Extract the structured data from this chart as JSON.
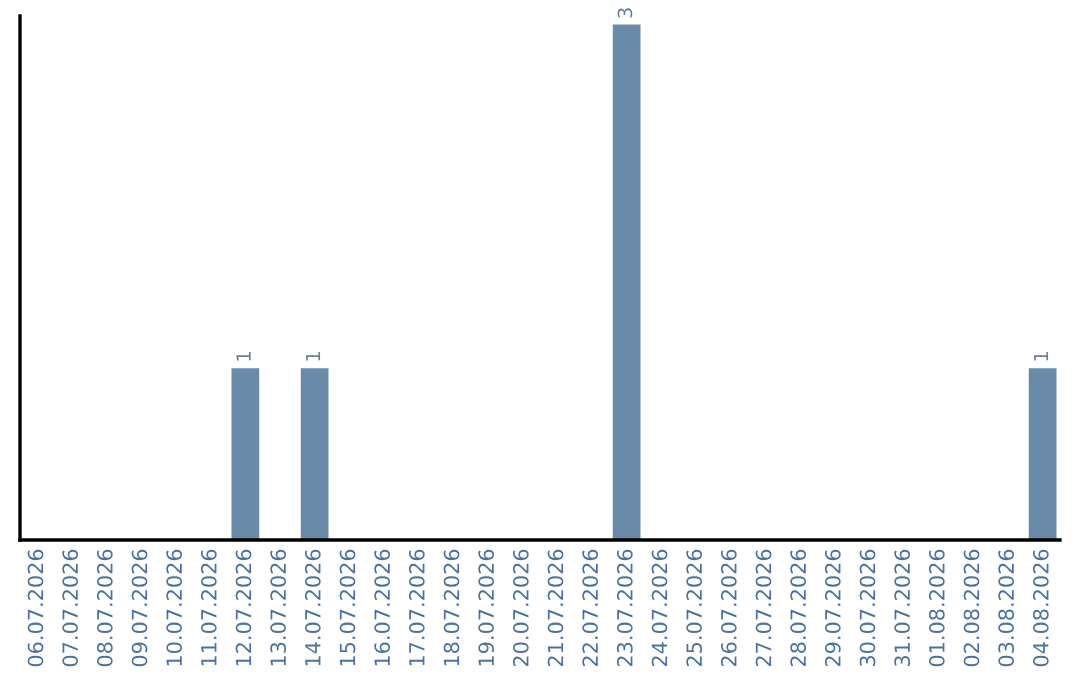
{
  "chart_data": {
    "type": "bar",
    "categories": [
      "06.07.2026",
      "07.07.2026",
      "08.07.2026",
      "09.07.2026",
      "10.07.2026",
      "11.07.2026",
      "12.07.2026",
      "13.07.2026",
      "14.07.2026",
      "15.07.2026",
      "16.07.2026",
      "17.07.2026",
      "18.07.2026",
      "19.07.2026",
      "20.07.2026",
      "21.07.2026",
      "22.07.2026",
      "23.07.2026",
      "24.07.2026",
      "25.07.2026",
      "26.07.2026",
      "27.07.2026",
      "28.07.2026",
      "29.07.2026",
      "30.07.2026",
      "31.07.2026",
      "01.08.2026",
      "02.08.2026",
      "03.08.2026",
      "04.08.2026"
    ],
    "values": [
      null,
      null,
      null,
      null,
      null,
      null,
      1,
      null,
      1,
      null,
      null,
      null,
      null,
      null,
      null,
      null,
      null,
      3,
      null,
      null,
      null,
      null,
      null,
      null,
      null,
      null,
      null,
      null,
      null,
      1
    ],
    "color": "#6a8aaa",
    "data_labels": true,
    "ylim": [
      0,
      3.05
    ],
    "tick_labels": "x",
    "grid": false,
    "legend": false
  }
}
